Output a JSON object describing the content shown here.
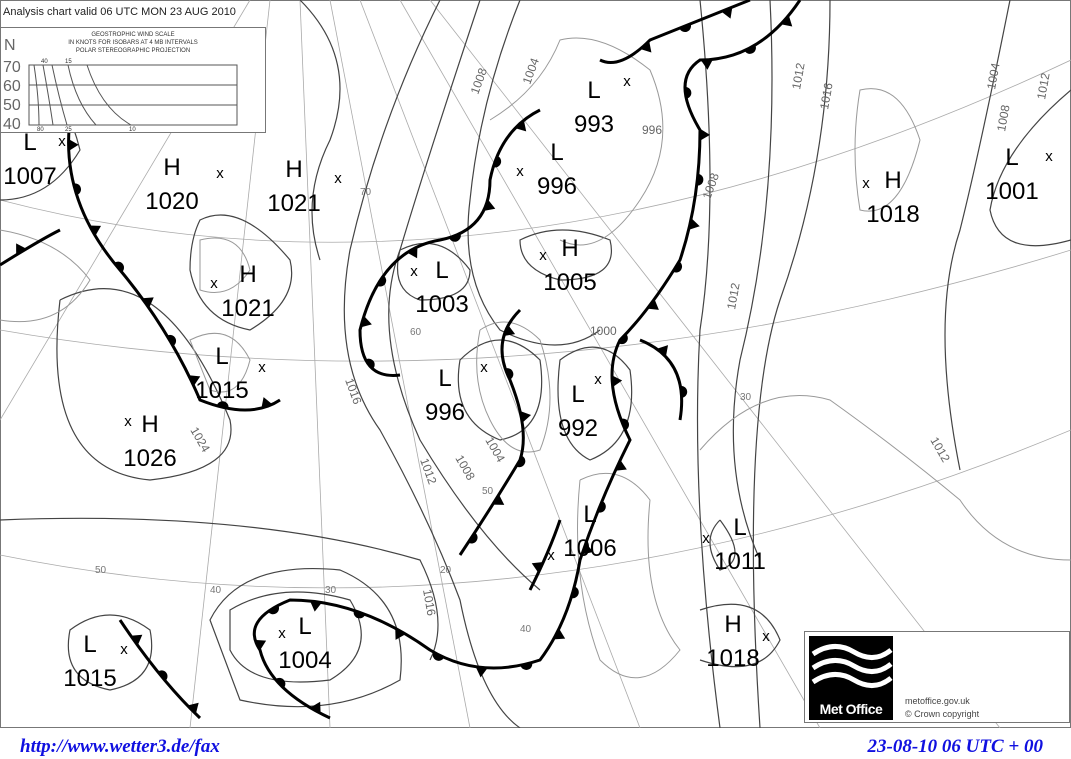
{
  "chart_title": "Analysis chart valid 06 UTC MON 23 AUG 2010",
  "wind_scale": {
    "title": "GEOSTROPHIC WIND SCALE",
    "subtitle": "IN KNOTS FOR ISOBARS AT  4 MB INTERVALS",
    "projection": "POLAR STEREOGRAPHIC PROJECTION",
    "north_label": "N",
    "latitudes": [
      "70",
      "60",
      "50",
      "40"
    ],
    "top_speeds": [
      "40",
      "15"
    ],
    "bottom_speeds": [
      "80",
      "25",
      "10"
    ]
  },
  "pressure_centers": [
    {
      "type": "L",
      "value": "1007"
    },
    {
      "type": "H",
      "value": "1020"
    },
    {
      "type": "H",
      "value": "1021"
    },
    {
      "type": "H",
      "value": "1021"
    },
    {
      "type": "L",
      "value": "1015"
    },
    {
      "type": "H",
      "value": "1026"
    },
    {
      "type": "L",
      "value": "1003"
    },
    {
      "type": "L",
      "value": "996"
    },
    {
      "type": "L",
      "value": "993"
    },
    {
      "type": "H",
      "value": "1005"
    },
    {
      "type": "L",
      "value": "996"
    },
    {
      "type": "L",
      "value": "992"
    },
    {
      "type": "L",
      "value": "1006"
    },
    {
      "type": "L",
      "value": "1011"
    },
    {
      "type": "H",
      "value": "1018"
    },
    {
      "type": "L",
      "value": "1004"
    },
    {
      "type": "L",
      "value": "1015"
    },
    {
      "type": "H",
      "value": "1018"
    },
    {
      "type": "L",
      "value": "1001"
    }
  ],
  "isobar_labels": [
    "1008",
    "1004",
    "1012",
    "1016",
    "1016",
    "1012",
    "1008",
    "1004",
    "1000",
    "1024",
    "1016",
    "1012",
    "1004",
    "1008",
    "1012",
    "1012",
    "1008",
    "996"
  ],
  "grid_labels": [
    "70",
    "60",
    "50",
    "40",
    "30",
    "20",
    "50",
    "40",
    "30"
  ],
  "logo": {
    "name": "Met Office",
    "url": "metoffice.gov.uk",
    "copyright": "©  Crown copyright"
  },
  "footer": {
    "left": "http://www.wetter3.de/fax",
    "right": "23-08-10 06 UTC + 00"
  },
  "colors": {
    "footer_text": "#1010e0",
    "fronts": "#000000",
    "isobars": "#444444",
    "coast": "#999999"
  }
}
